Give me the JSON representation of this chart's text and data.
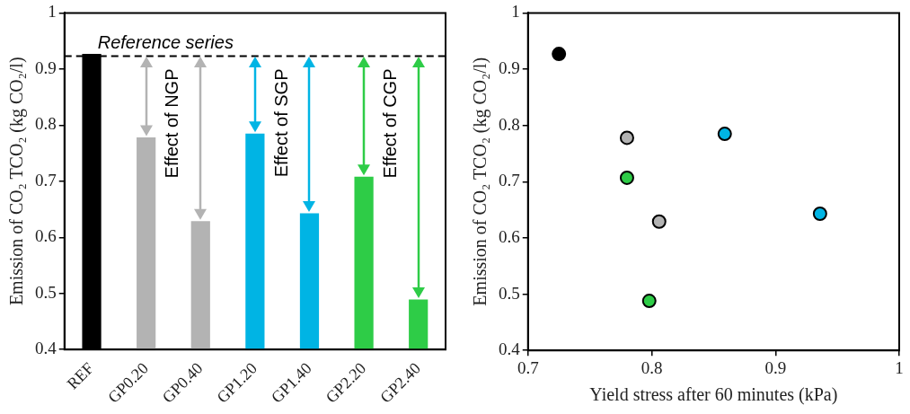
{
  "chart_data": [
    {
      "type": "bar",
      "categories": [
        "REF",
        "GP0.20",
        "GP0.40",
        "GP1.20",
        "GP1.40",
        "GP2.20",
        "GP2.40"
      ],
      "values": [
        0.927,
        0.778,
        0.629,
        0.785,
        0.643,
        0.708,
        0.489
      ],
      "colors": [
        "#000000",
        "#b3b3b3",
        "#b3b3b3",
        "#00b4e4",
        "#00b4e4",
        "#2ecc47",
        "#2ecc47"
      ],
      "ylabel": "Emission of CO₂ TCO₂ (kg CO₂/l)",
      "ylim": [
        0.4,
        1
      ],
      "yticks": [
        0.4,
        0.5,
        0.6,
        0.7,
        0.8,
        0.9,
        1
      ],
      "ref_lines": [
        {
          "axis": "y",
          "value": 0.923,
          "label": "Reference series",
          "color": "#000000",
          "line_style": "dashed"
        }
      ],
      "annotations": [
        "Effect of NGP",
        "Effect of SGP",
        "Effect of CGP"
      ],
      "grid": false,
      "legend": false
    },
    {
      "type": "scatter",
      "x": [
        0.725,
        0.78,
        0.78,
        0.806,
        0.859,
        0.936,
        0.798
      ],
      "values": [
        0.927,
        0.778,
        0.707,
        0.629,
        0.785,
        0.643,
        0.488
      ],
      "colors": [
        "#000000",
        "#b3b3b3",
        "#2ecc47",
        "#b3b3b3",
        "#00b4e4",
        "#00b4e4",
        "#2ecc47"
      ],
      "xlabel": "Yield stress after 60 minutes (kPa)",
      "ylabel": "Emission of CO₂ TCO₂ (kg CO₂/l)",
      "xlim": [
        0.7,
        1
      ],
      "xticks": [
        0.7,
        0.8,
        0.9,
        1
      ],
      "ylim": [
        0.4,
        1
      ],
      "yticks": [
        0.4,
        0.5,
        0.6,
        0.7,
        0.8,
        0.9,
        1
      ],
      "grid": false,
      "legend": false,
      "marker": "circle"
    }
  ]
}
